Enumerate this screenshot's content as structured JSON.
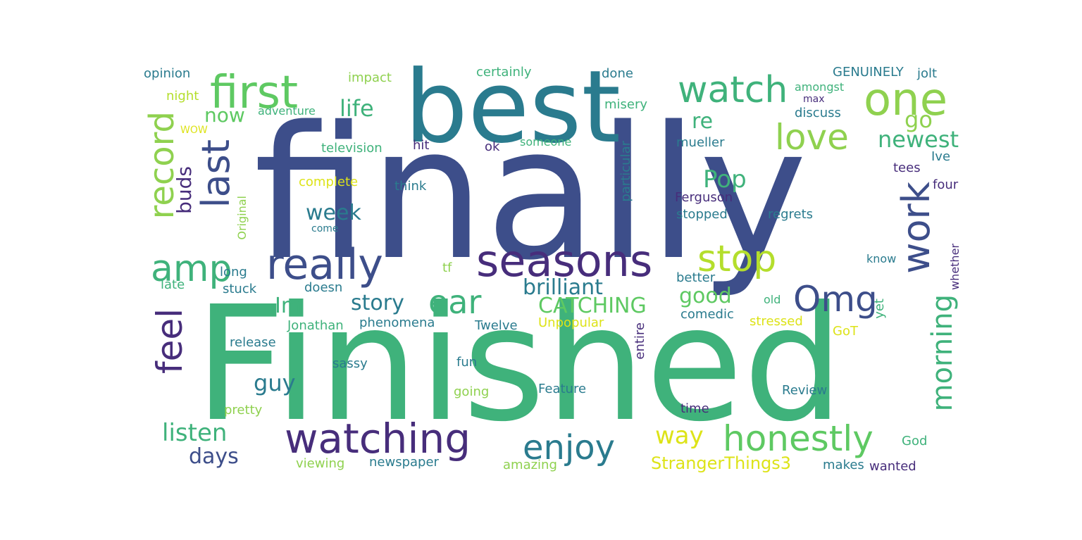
{
  "palette": {
    "navy": "#3d4e8a",
    "teal": "#2a7b8e",
    "green": "#3fb27b",
    "lime": "#8fd14f",
    "yellow": "#dde318",
    "purple": "#472d7b",
    "mint": "#5ec962",
    "sea": "#21918c"
  },
  "words": {
    "finally": "finally",
    "finished": "Finished",
    "best": "best",
    "first": "first",
    "watch": "watch",
    "one": "one",
    "love": "love",
    "newest": "newest",
    "go": "go",
    "re": "re",
    "record": "record",
    "last": "last",
    "buds": "buds",
    "now": "now",
    "life": "life",
    "amp": "amp",
    "really": "really",
    "seasons": "seasons",
    "stop": "stop",
    "work": "work",
    "pop": "Pop",
    "week": "week",
    "im": "Im",
    "story": "story",
    "ear": "ear",
    "brilliant": "brilliant",
    "catching": "CATCHING",
    "good": "good",
    "omg": "Omg",
    "morning": "morning",
    "feel": "feel",
    "guy": "guy",
    "listen": "listen",
    "days": "days",
    "watching": "watching",
    "enjoy": "enjoy",
    "way": "way",
    "honestly": "honestly",
    "strangerthings3": "StrangerThings3",
    "opinion": "opinion",
    "night": "night",
    "impact": "impact",
    "certainly": "certainly",
    "done": "done",
    "genuinely": "GENUINELY",
    "jolt": "jolt",
    "amongst": "amongst",
    "max": "max",
    "discuss": "discuss",
    "misery": "misery",
    "adventure": "adventure",
    "wow": "WOW",
    "someone": "someone",
    "mueller": "mueller",
    "television": "television",
    "hit": "hit",
    "ok": "ok",
    "ive": "Ive",
    "tees": "tees",
    "four": "four",
    "complete": "complete",
    "think": "think",
    "ferguson": "Ferguson",
    "stopped": "stopped",
    "regrets": "regrets",
    "come": "come",
    "particular": "particular",
    "original": "Original",
    "long": "long",
    "late": "late",
    "stuck": "stuck",
    "tf": "tf",
    "doesn": "doesn",
    "better": "better",
    "know": "know",
    "whether": "whether",
    "old": "old",
    "comedic": "comedic",
    "stressed": "stressed",
    "yet": "yet",
    "got": "GoT",
    "jonathan": "Jonathan",
    "phenomena": "phenomena",
    "twelve": "Twelve",
    "unpopular": "Unpopular",
    "entire": "entire",
    "release": "release",
    "sassy": "sassy",
    "fun": "fun",
    "going": "going",
    "feature": "Feature",
    "review": "Review",
    "pretty": "pretty",
    "time": "time",
    "god": "God",
    "viewing": "viewing",
    "newspaper": "newspaper",
    "amazing": "amazing",
    "makes": "makes",
    "wanted": "wanted"
  }
}
